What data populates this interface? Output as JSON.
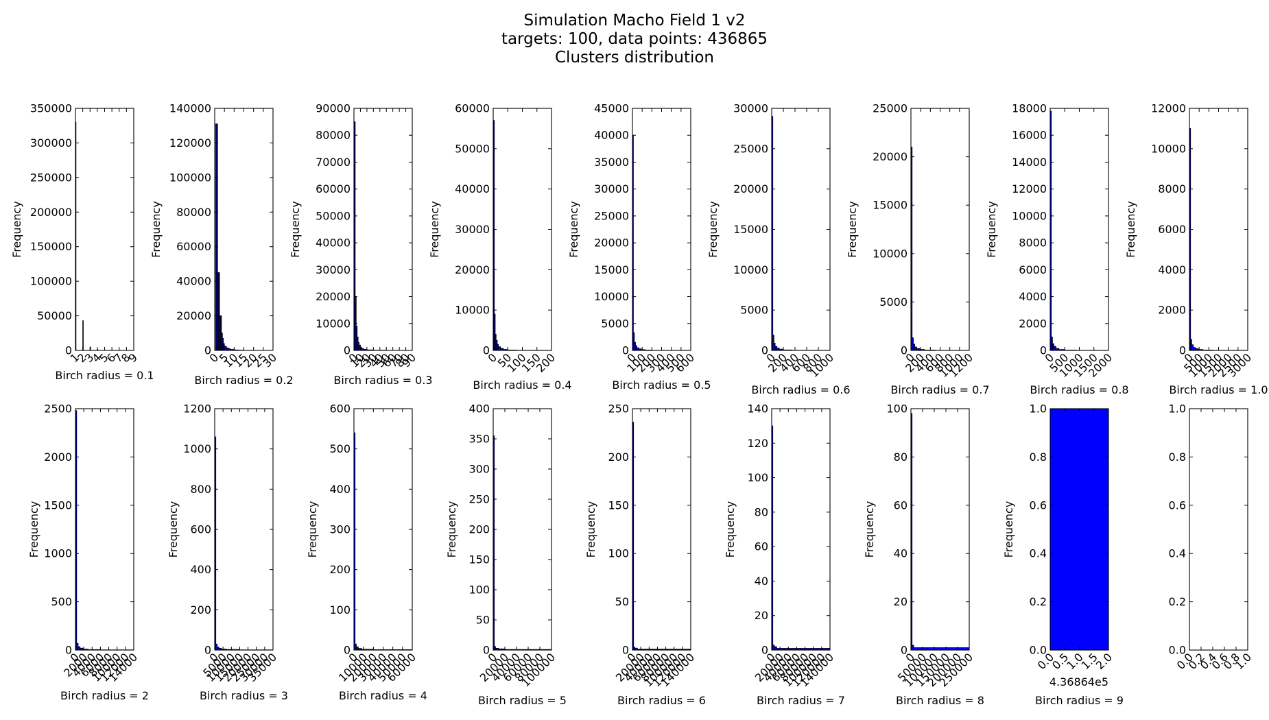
{
  "figure": {
    "title_lines": [
      "Simulation Macho Field 1 v2",
      "targets: 100,   data points: 436865",
      "Clusters distribution"
    ]
  },
  "colors": {
    "bar": "#0000ff",
    "edge": "#000000",
    "axes": "#000000"
  },
  "chart_data": [
    {
      "type": "bar",
      "row": 0,
      "col": 0,
      "xlabel": "Birch radius = 0.1",
      "ylabel": "Frequency",
      "xlim": [
        1,
        9
      ],
      "ylim": [
        0,
        350000
      ],
      "xticks": [
        1,
        2,
        3,
        4,
        5,
        6,
        7,
        8,
        9
      ],
      "yticks": [
        0,
        50000,
        100000,
        150000,
        200000,
        250000,
        300000,
        350000
      ],
      "bars": [
        [
          1,
          1.08,
          330000
        ],
        [
          2,
          2.08,
          43000
        ],
        [
          3,
          3.08,
          5000
        ],
        [
          4,
          4.08,
          1500
        ],
        [
          5,
          5.08,
          500
        ],
        [
          6,
          6.08,
          200
        ]
      ]
    },
    {
      "type": "bar",
      "row": 0,
      "col": 1,
      "xlabel": "Birch radius = 0.2",
      "ylabel": "Frequency",
      "xlim": [
        0,
        30
      ],
      "ylim": [
        0,
        140000
      ],
      "xticks": [
        0,
        5,
        10,
        15,
        20,
        25,
        30
      ],
      "yticks": [
        0,
        20000,
        40000,
        60000,
        80000,
        100000,
        120000,
        140000
      ],
      "bars": [
        [
          0.5,
          1,
          131000
        ],
        [
          1,
          1.5,
          131000
        ],
        [
          1.5,
          2,
          45000
        ],
        [
          2,
          2.5,
          45000
        ],
        [
          2.5,
          3,
          20000
        ],
        [
          3,
          3.5,
          20000
        ],
        [
          3.5,
          4,
          10000
        ],
        [
          4,
          4.5,
          7000
        ],
        [
          4.5,
          5,
          4000
        ],
        [
          5,
          6,
          2500
        ],
        [
          6,
          7,
          1500
        ],
        [
          7,
          8,
          1000
        ],
        [
          8,
          10,
          600
        ],
        [
          10,
          12,
          300
        ],
        [
          12,
          15,
          150
        ],
        [
          15,
          20,
          60
        ],
        [
          20,
          30,
          20
        ]
      ]
    },
    {
      "type": "bar",
      "row": 0,
      "col": 2,
      "xlabel": "Birch radius = 0.3",
      "ylabel": "Frequency",
      "xlim": [
        0,
        90
      ],
      "ylim": [
        0,
        90000
      ],
      "xticks": [
        0,
        10,
        20,
        30,
        40,
        50,
        60,
        70,
        80,
        90
      ],
      "yticks": [
        0,
        10000,
        20000,
        30000,
        40000,
        50000,
        60000,
        70000,
        80000,
        90000
      ],
      "bars": [
        [
          0.5,
          2,
          85000
        ],
        [
          2,
          3.5,
          20000
        ],
        [
          3.5,
          5,
          9000
        ],
        [
          5,
          6.5,
          5000
        ],
        [
          6.5,
          8,
          3000
        ],
        [
          8,
          10,
          2000
        ],
        [
          10,
          12,
          1200
        ],
        [
          12,
          15,
          700
        ],
        [
          15,
          20,
          400
        ],
        [
          20,
          30,
          200
        ],
        [
          30,
          50,
          80
        ],
        [
          50,
          90,
          20
        ]
      ]
    },
    {
      "type": "bar",
      "row": 0,
      "col": 3,
      "xlabel": "Birch radius = 0.4",
      "ylabel": "Frequency",
      "xlim": [
        0,
        200
      ],
      "ylim": [
        0,
        60000
      ],
      "xticks": [
        0,
        50,
        100,
        150,
        200
      ],
      "yticks": [
        0,
        10000,
        20000,
        30000,
        40000,
        50000,
        60000
      ],
      "bars": [
        [
          1,
          4,
          57000
        ],
        [
          4,
          7,
          9000
        ],
        [
          7,
          10,
          4000
        ],
        [
          10,
          14,
          2500
        ],
        [
          14,
          18,
          1500
        ],
        [
          18,
          25,
          900
        ],
        [
          25,
          35,
          500
        ],
        [
          35,
          50,
          250
        ],
        [
          50,
          80,
          100
        ],
        [
          80,
          200,
          30
        ]
      ]
    },
    {
      "type": "bar",
      "row": 0,
      "col": 4,
      "xlabel": "Birch radius = 0.5",
      "ylabel": "Frequency",
      "xlim": [
        0,
        600
      ],
      "ylim": [
        0,
        45000
      ],
      "xticks": [
        0,
        100,
        200,
        300,
        400,
        500,
        600
      ],
      "yticks": [
        0,
        5000,
        10000,
        15000,
        20000,
        25000,
        30000,
        35000,
        40000,
        45000
      ],
      "bars": [
        [
          1,
          10,
          40000
        ],
        [
          10,
          20,
          3300
        ],
        [
          20,
          32,
          1500
        ],
        [
          32,
          45,
          900
        ],
        [
          45,
          65,
          500
        ],
        [
          65,
          90,
          300
        ],
        [
          90,
          130,
          150
        ],
        [
          130,
          200,
          70
        ],
        [
          200,
          600,
          20
        ]
      ]
    },
    {
      "type": "bar",
      "row": 0,
      "col": 5,
      "xlabel": "Birch radius = 0.6",
      "ylabel": "Frequency",
      "xlim": [
        0,
        1000
      ],
      "ylim": [
        0,
        30000
      ],
      "xticks": [
        0,
        200,
        400,
        600,
        800,
        1000
      ],
      "yticks": [
        0,
        5000,
        10000,
        15000,
        20000,
        25000,
        30000
      ],
      "bars": [
        [
          1,
          20,
          29000
        ],
        [
          20,
          40,
          1900
        ],
        [
          40,
          60,
          900
        ],
        [
          60,
          90,
          500
        ],
        [
          90,
          130,
          300
        ],
        [
          130,
          200,
          150
        ],
        [
          200,
          350,
          60
        ],
        [
          350,
          1000,
          15
        ]
      ]
    },
    {
      "type": "bar",
      "row": 0,
      "col": 6,
      "xlabel": "Birch radius = 0.7",
      "ylabel": "Frequency",
      "xlim": [
        0,
        1200
      ],
      "ylim": [
        0,
        25000
      ],
      "xticks": [
        0,
        200,
        400,
        600,
        800,
        1000,
        1200
      ],
      "yticks": [
        0,
        5000,
        10000,
        15000,
        20000,
        25000
      ],
      "bars": [
        [
          1,
          25,
          21000
        ],
        [
          25,
          50,
          1300
        ],
        [
          50,
          80,
          650
        ],
        [
          80,
          120,
          350
        ],
        [
          120,
          180,
          200
        ],
        [
          180,
          280,
          100
        ],
        [
          280,
          500,
          40
        ],
        [
          500,
          1200,
          10
        ]
      ]
    },
    {
      "type": "bar",
      "row": 0,
      "col": 7,
      "xlabel": "Birch radius = 0.8",
      "ylabel": "Frequency",
      "xlim": [
        0,
        2000
      ],
      "ylim": [
        0,
        18000
      ],
      "xticks": [
        0,
        500,
        1000,
        1500,
        2000
      ],
      "yticks": [
        0,
        2000,
        4000,
        6000,
        8000,
        10000,
        12000,
        14000,
        16000,
        18000
      ],
      "bars": [
        [
          1,
          40,
          17800
        ],
        [
          40,
          80,
          1000
        ],
        [
          80,
          130,
          500
        ],
        [
          130,
          200,
          300
        ],
        [
          200,
          300,
          150
        ],
        [
          300,
          500,
          70
        ],
        [
          500,
          900,
          25
        ],
        [
          900,
          2000,
          8
        ]
      ]
    },
    {
      "type": "bar",
      "row": 0,
      "col": 8,
      "xlabel": "Birch radius = 1.0",
      "ylabel": "Frequency",
      "xlim": [
        0,
        3000
      ],
      "ylim": [
        0,
        12000
      ],
      "xticks": [
        0,
        500,
        1000,
        1500,
        2000,
        2500,
        3000
      ],
      "yticks": [
        0,
        2000,
        4000,
        6000,
        8000,
        10000,
        12000
      ],
      "bars": [
        [
          1,
          60,
          11000
        ],
        [
          60,
          120,
          550
        ],
        [
          120,
          200,
          280
        ],
        [
          200,
          300,
          150
        ],
        [
          300,
          450,
          90
        ],
        [
          450,
          700,
          45
        ],
        [
          700,
          1200,
          20
        ],
        [
          1200,
          3000,
          6
        ]
      ]
    },
    {
      "type": "bar",
      "row": 1,
      "col": 0,
      "xlabel": "Birch radius = 2",
      "ylabel": "Frequency",
      "xlim": [
        0,
        14000
      ],
      "ylim": [
        0,
        2500
      ],
      "xticks": [
        0,
        2000,
        4000,
        6000,
        8000,
        10000,
        12000,
        14000
      ],
      "yticks": [
        0,
        500,
        1000,
        1500,
        2000,
        2500
      ],
      "bars": [
        [
          1,
          300,
          2480
        ],
        [
          300,
          650,
          70
        ],
        [
          650,
          1100,
          35
        ],
        [
          1100,
          1800,
          20
        ],
        [
          1800,
          3000,
          10
        ],
        [
          3000,
          6000,
          5
        ],
        [
          6000,
          14000,
          2
        ]
      ]
    },
    {
      "type": "bar",
      "row": 1,
      "col": 1,
      "xlabel": "Birch radius = 3",
      "ylabel": "Frequency",
      "xlim": [
        0,
        35000
      ],
      "ylim": [
        0,
        1200
      ],
      "xticks": [
        0,
        5000,
        10000,
        15000,
        20000,
        25000,
        30000,
        35000
      ],
      "yticks": [
        0,
        200,
        400,
        600,
        800,
        1000,
        1200
      ],
      "bars": [
        [
          1,
          700,
          1060
        ],
        [
          700,
          1500,
          30
        ],
        [
          1500,
          2500,
          15
        ],
        [
          2500,
          4000,
          9
        ],
        [
          4000,
          7000,
          5
        ],
        [
          7000,
          15000,
          3
        ],
        [
          15000,
          35000,
          1
        ]
      ]
    },
    {
      "type": "bar",
      "row": 1,
      "col": 2,
      "xlabel": "Birch radius = 4",
      "ylabel": "Frequency",
      "xlim": [
        0,
        60000
      ],
      "ylim": [
        0,
        600
      ],
      "xticks": [
        0,
        10000,
        20000,
        30000,
        40000,
        50000,
        60000
      ],
      "yticks": [
        0,
        100,
        200,
        300,
        400,
        500,
        600
      ],
      "bars": [
        [
          1,
          1200,
          540
        ],
        [
          1200,
          2500,
          15
        ],
        [
          2500,
          4500,
          8
        ],
        [
          4500,
          8000,
          4
        ],
        [
          8000,
          20000,
          2
        ],
        [
          20000,
          60000,
          1
        ]
      ]
    },
    {
      "type": "bar",
      "row": 1,
      "col": 3,
      "xlabel": "Birch radius = 5",
      "ylabel": "Frequency",
      "xlim": [
        0,
        100000
      ],
      "ylim": [
        0,
        400
      ],
      "xticks": [
        0,
        20000,
        40000,
        60000,
        80000,
        100000
      ],
      "yticks": [
        0,
        50,
        100,
        150,
        200,
        250,
        300,
        350,
        400
      ],
      "bars": [
        [
          1,
          2000,
          355
        ],
        [
          2000,
          4000,
          6
        ],
        [
          4000,
          9000,
          3
        ],
        [
          9000,
          20000,
          2
        ],
        [
          20000,
          45000,
          1
        ],
        [
          45000,
          100000,
          1
        ]
      ]
    },
    {
      "type": "bar",
      "row": 1,
      "col": 4,
      "xlabel": "Birch radius = 6",
      "ylabel": "Frequency",
      "xlim": [
        0,
        140000
      ],
      "ylim": [
        0,
        250
      ],
      "xticks": [
        0,
        20000,
        40000,
        60000,
        80000,
        100000,
        120000,
        140000
      ],
      "yticks": [
        0,
        50,
        100,
        150,
        200,
        250
      ],
      "bars": [
        [
          1,
          2800,
          236
        ],
        [
          2800,
          6000,
          3
        ],
        [
          6000,
          12000,
          2
        ],
        [
          12000,
          30000,
          1
        ],
        [
          30000,
          70000,
          1
        ],
        [
          70000,
          140000,
          1
        ]
      ]
    },
    {
      "type": "bar",
      "row": 1,
      "col": 5,
      "xlabel": "Birch radius = 7",
      "ylabel": "Frequency",
      "xlim": [
        0,
        140000
      ],
      "ylim": [
        0,
        140
      ],
      "xticks": [
        0,
        20000,
        40000,
        60000,
        80000,
        100000,
        120000,
        140000
      ],
      "yticks": [
        0,
        20,
        40,
        60,
        80,
        100,
        120,
        140
      ],
      "bars": [
        [
          1,
          2800,
          130
        ],
        [
          2800,
          6000,
          3
        ],
        [
          6000,
          12000,
          2
        ],
        [
          12000,
          30000,
          1
        ],
        [
          30000,
          70000,
          1
        ],
        [
          70000,
          140000,
          1
        ]
      ]
    },
    {
      "type": "bar",
      "row": 1,
      "col": 6,
      "xlabel": "Birch radius = 8",
      "ylabel": "Frequency",
      "xlim": [
        0,
        250000
      ],
      "ylim": [
        0,
        100
      ],
      "xticks": [
        0,
        50000,
        100000,
        150000,
        200000,
        250000
      ],
      "yticks": [
        0,
        20,
        40,
        60,
        80,
        100
      ],
      "bars": [
        [
          1,
          5000,
          98
        ],
        [
          5000,
          12000,
          2
        ],
        [
          12000,
          30000,
          1
        ],
        [
          30000,
          70000,
          1
        ],
        [
          70000,
          150000,
          1
        ],
        [
          150000,
          250000,
          1
        ]
      ]
    },
    {
      "type": "bar",
      "row": 1,
      "col": 7,
      "xlabel": "Birch radius = 9",
      "ylabel": "Frequency",
      "xlim": [
        0,
        2
      ],
      "ylim": [
        0,
        1
      ],
      "xticks": [
        "0.0",
        "0.5",
        "1.0",
        "1.5",
        "2.0"
      ],
      "yticks": [
        "0.0",
        "0.2",
        "0.4",
        "0.6",
        "0.8",
        "1.0"
      ],
      "offset_text": "4.36864e5",
      "bars": [
        [
          0,
          2,
          1
        ]
      ]
    },
    {
      "type": "bar",
      "row": 1,
      "col": 8,
      "xlabel": "",
      "ylabel": "",
      "xlim": [
        0,
        1
      ],
      "ylim": [
        0,
        1
      ],
      "xticks": [
        "0.0",
        "0.2",
        "0.4",
        "0.6",
        "0.8",
        "1.0"
      ],
      "yticks": [
        "0.0",
        "0.2",
        "0.4",
        "0.6",
        "0.8",
        "1.0"
      ],
      "bars": []
    }
  ]
}
